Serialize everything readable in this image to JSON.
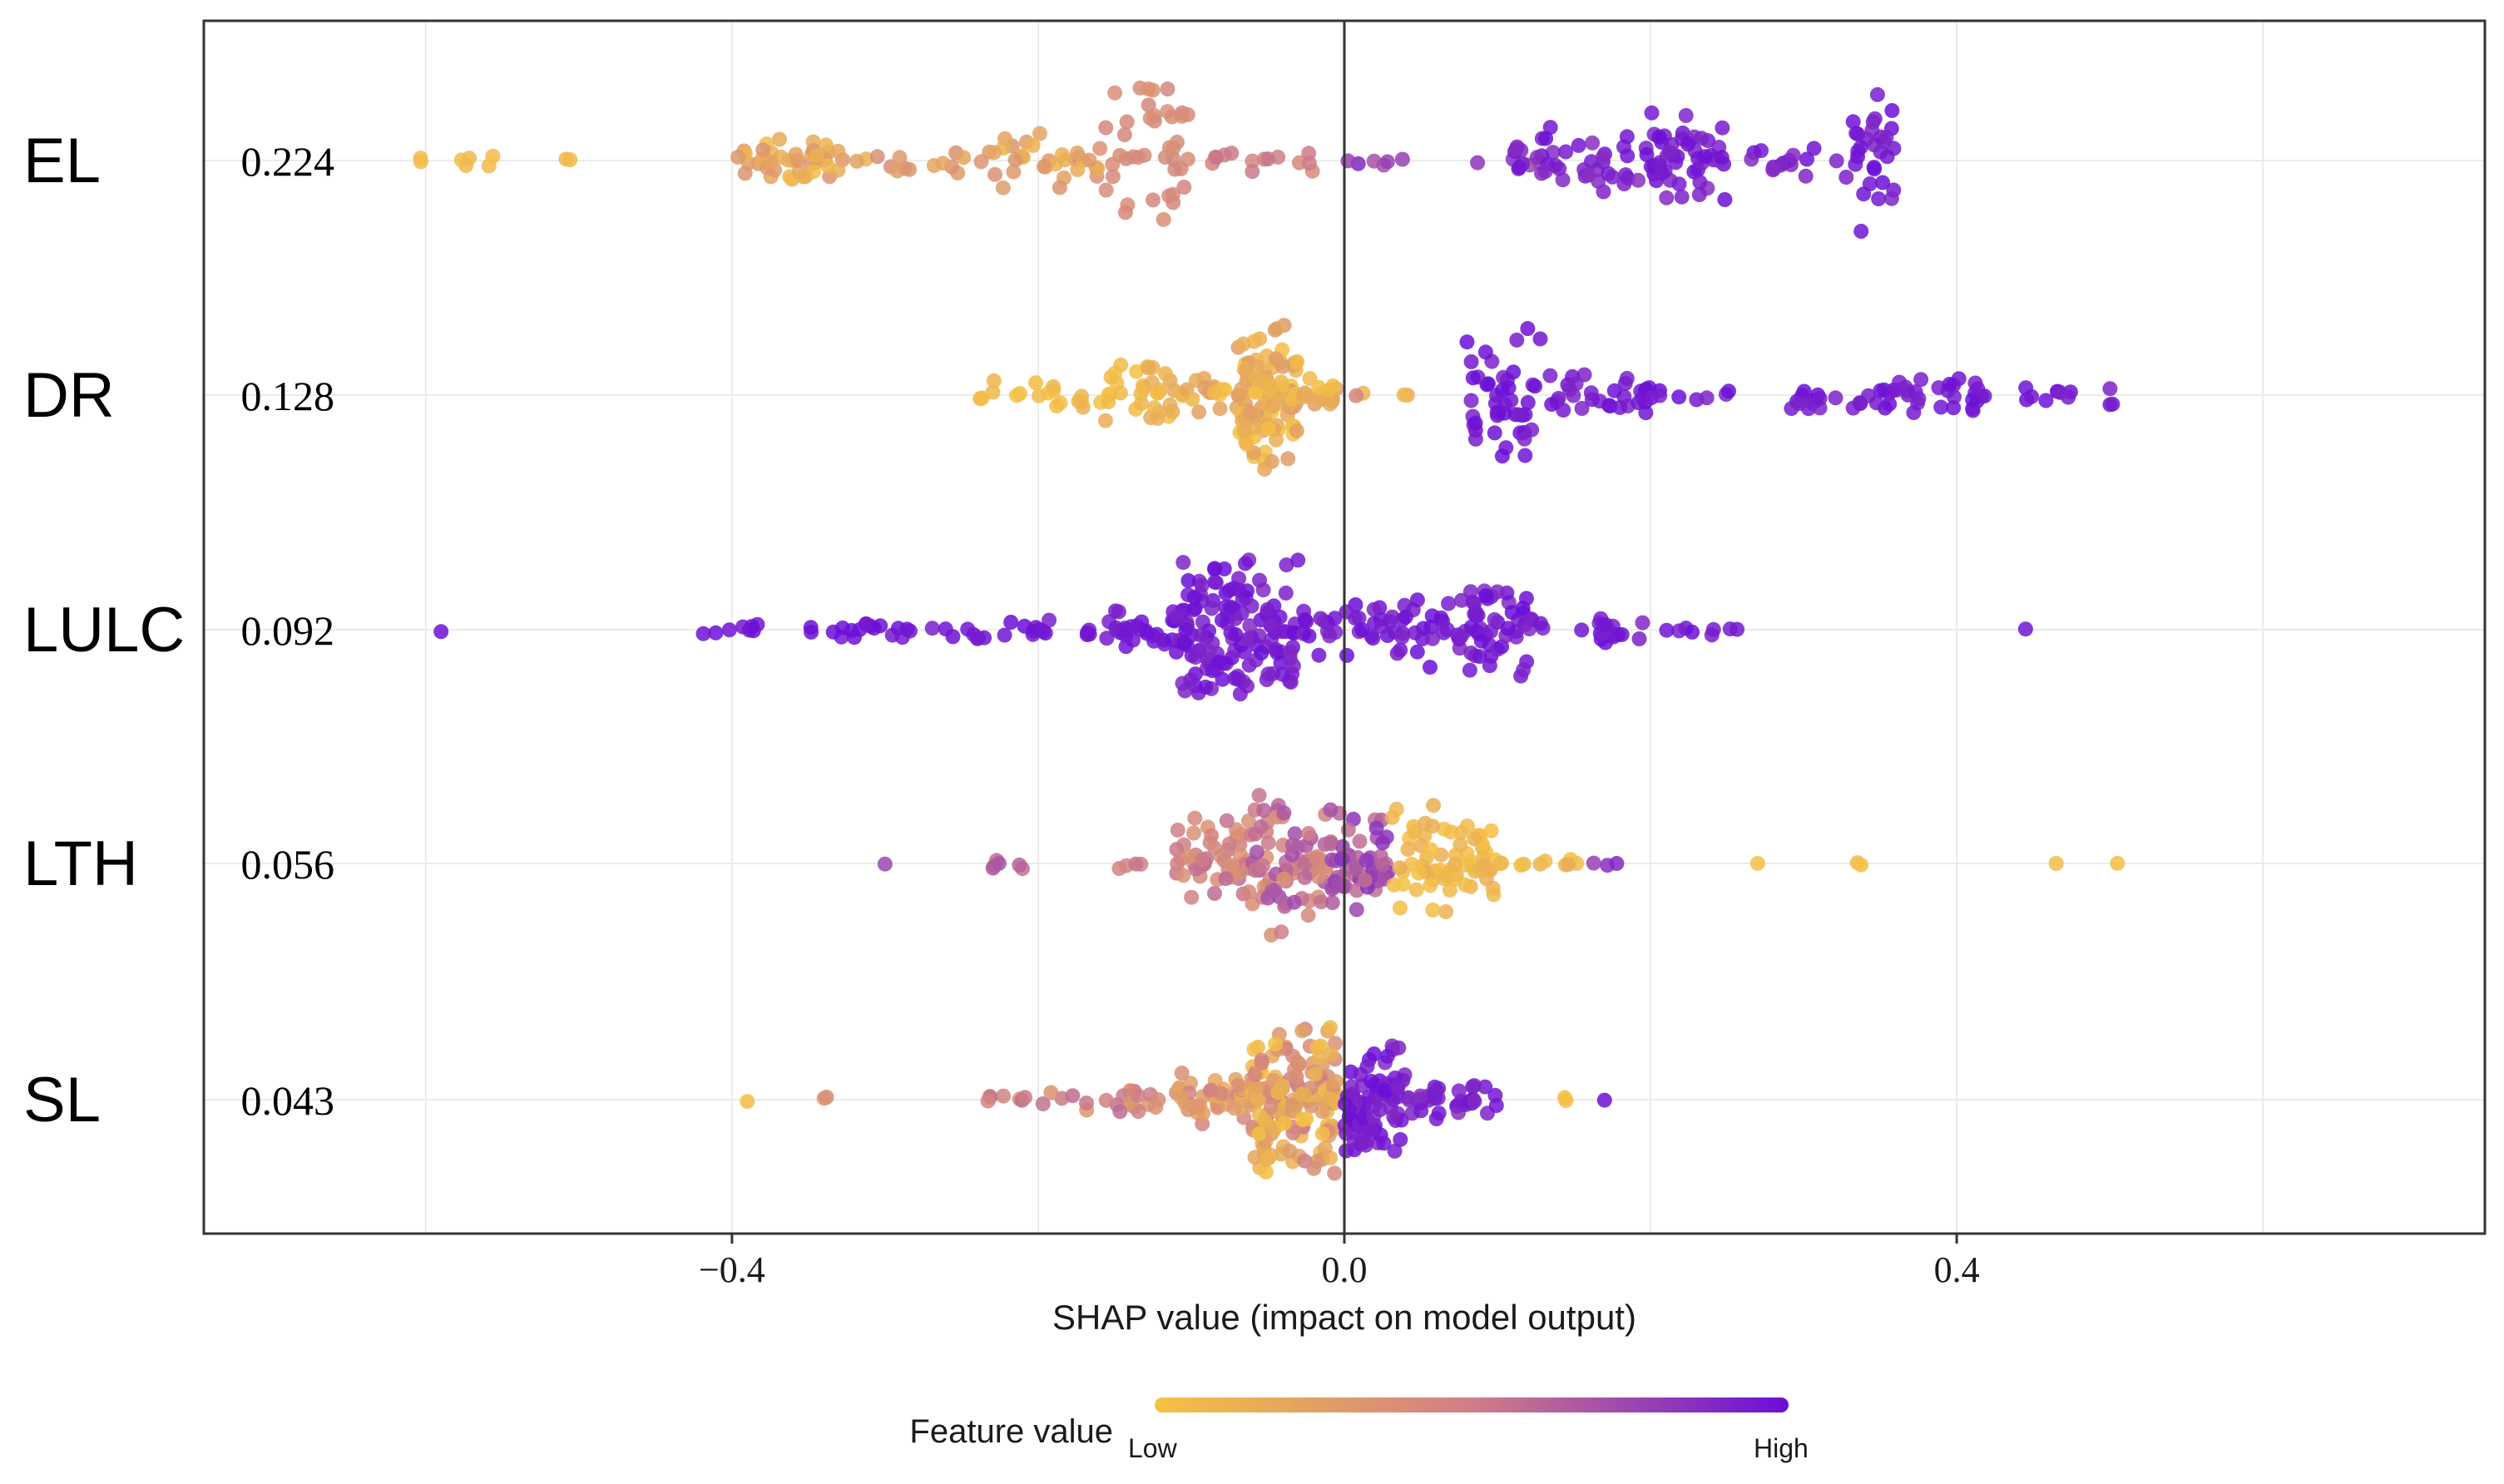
{
  "chart_data": {
    "type": "scatter",
    "subtype": "shap-beeswarm",
    "xlabel": "SHAP value (impact on model output)",
    "xlim": [
      -0.745,
      0.745
    ],
    "xticks": [
      -0.4,
      0.0,
      0.4
    ],
    "xtick_labels": [
      "−0.4",
      "0.0",
      "0.4"
    ],
    "grid": true,
    "colors": {
      "low": "#f5c242",
      "mid": "#cf7f86",
      "high": "#6a0ed8"
    },
    "legend": {
      "title": "Feature value",
      "low_label": "Low",
      "high_label": "High",
      "placement": "bottom-center"
    },
    "features": [
      {
        "name": "EL",
        "importance": "0.224",
        "clusters": [
          {
            "range": [
              -0.61,
              -0.6
            ],
            "n": 2,
            "spread": 0.1,
            "c": [
              0.02,
              0.05
            ]
          },
          {
            "range": [
              -0.58,
              -0.55
            ],
            "n": 5,
            "spread": 0.12,
            "c": [
              0.03,
              0.08
            ]
          },
          {
            "range": [
              -0.51,
              -0.5
            ],
            "n": 2,
            "spread": 0.08,
            "c": [
              0.05,
              0.08
            ]
          },
          {
            "range": [
              -0.4,
              -0.31
            ],
            "n": 45,
            "spread": 0.35,
            "c": [
              0.05,
              0.35
            ]
          },
          {
            "range": [
              -0.31,
              -0.23
            ],
            "n": 14,
            "spread": 0.18,
            "c": [
              0.2,
              0.4
            ]
          },
          {
            "range": [
              -0.23,
              -0.16
            ],
            "n": 30,
            "spread": 0.4,
            "c": [
              0.1,
              0.4
            ]
          },
          {
            "range": [
              -0.16,
              -0.1
            ],
            "n": 42,
            "spread": 1.0,
            "c": [
              0.35,
              0.45
            ]
          },
          {
            "range": [
              -0.1,
              -0.02
            ],
            "n": 14,
            "spread": 0.15,
            "c": [
              0.4,
              0.55
            ]
          },
          {
            "range": [
              -0.01,
              0.13
            ],
            "n": 10,
            "spread": 0.12,
            "c": [
              0.7,
              0.9
            ]
          },
          {
            "range": [
              0.11,
              0.22
            ],
            "n": 55,
            "spread": 0.45,
            "c": [
              0.85,
              1.0
            ]
          },
          {
            "range": [
              0.2,
              0.25
            ],
            "n": 40,
            "spread": 0.7,
            "c": [
              0.85,
              1.0
            ]
          },
          {
            "range": [
              0.26,
              0.33
            ],
            "n": 16,
            "spread": 0.25,
            "c": [
              0.85,
              1.0
            ]
          },
          {
            "range": [
              0.33,
              0.36
            ],
            "n": 30,
            "spread": 1.0,
            "c": [
              0.9,
              1.0
            ]
          }
        ]
      },
      {
        "name": "DR",
        "importance": "0.128",
        "clusters": [
          {
            "range": [
              -0.24,
              -0.18
            ],
            "n": 14,
            "spread": 0.2,
            "c": [
              0.0,
              0.1
            ]
          },
          {
            "range": [
              -0.18,
              -0.11
            ],
            "n": 38,
            "spread": 0.45,
            "c": [
              0.0,
              0.2
            ]
          },
          {
            "range": [
              -0.11,
              -0.07
            ],
            "n": 18,
            "spread": 0.3,
            "c": [
              0.0,
              0.3
            ]
          },
          {
            "range": [
              -0.07,
              -0.03
            ],
            "n": 110,
            "spread": 1.0,
            "c": [
              0.0,
              0.3
            ]
          },
          {
            "range": [
              -0.03,
              -0.005
            ],
            "n": 18,
            "spread": 0.35,
            "c": [
              0.0,
              0.3
            ]
          },
          {
            "range": [
              0.0,
              0.05
            ],
            "n": 4,
            "spread": 0.05,
            "c": [
              0.05,
              0.9
            ]
          },
          {
            "range": [
              0.08,
              0.13
            ],
            "n": 45,
            "spread": 0.9,
            "c": [
              0.9,
              1.0
            ]
          },
          {
            "range": [
              0.13,
              0.2
            ],
            "n": 32,
            "spread": 0.3,
            "c": [
              0.9,
              1.0
            ]
          },
          {
            "range": [
              0.2,
              0.27
            ],
            "n": 8,
            "spread": 0.08,
            "c": [
              0.9,
              1.0
            ]
          },
          {
            "range": [
              0.29,
              0.37
            ],
            "n": 28,
            "spread": 0.25,
            "c": [
              0.9,
              1.0
            ]
          },
          {
            "range": [
              0.37,
              0.42
            ],
            "n": 22,
            "spread": 0.3,
            "c": [
              0.9,
              1.0
            ]
          },
          {
            "range": [
              0.44,
              0.51
            ],
            "n": 12,
            "spread": 0.15,
            "c": [
              0.9,
              1.0
            ]
          }
        ]
      },
      {
        "name": "LULC",
        "importance": "0.092",
        "clusters": [
          {
            "range": [
              -0.59,
              -0.59
            ],
            "n": 1,
            "spread": 0.05,
            "c": [
              0.95,
              1.0
            ]
          },
          {
            "range": [
              -0.42,
              -0.38
            ],
            "n": 8,
            "spread": 0.12,
            "c": [
              0.95,
              1.0
            ]
          },
          {
            "range": [
              -0.35,
              -0.28
            ],
            "n": 18,
            "spread": 0.12,
            "c": [
              0.95,
              1.0
            ]
          },
          {
            "range": [
              -0.27,
              -0.15
            ],
            "n": 24,
            "spread": 0.15,
            "c": [
              0.92,
              1.0
            ]
          },
          {
            "range": [
              -0.15,
              -0.11
            ],
            "n": 25,
            "spread": 0.3,
            "c": [
              0.92,
              1.0
            ]
          },
          {
            "range": [
              -0.11,
              -0.03
            ],
            "n": 140,
            "spread": 1.0,
            "c": [
              0.88,
              1.0
            ]
          },
          {
            "range": [
              -0.03,
              0.03
            ],
            "n": 30,
            "spread": 0.35,
            "c": [
              0.88,
              1.0
            ]
          },
          {
            "range": [
              0.03,
              0.08
            ],
            "n": 30,
            "spread": 0.55,
            "c": [
              0.88,
              1.0
            ]
          },
          {
            "range": [
              0.08,
              0.12
            ],
            "n": 45,
            "spread": 0.85,
            "c": [
              0.88,
              1.0
            ]
          },
          {
            "range": [
              0.12,
              0.2
            ],
            "n": 22,
            "spread": 0.2,
            "c": [
              0.88,
              1.0
            ]
          },
          {
            "range": [
              0.21,
              0.26
            ],
            "n": 8,
            "spread": 0.08,
            "c": [
              0.88,
              1.0
            ]
          },
          {
            "range": [
              0.445,
              0.445
            ],
            "n": 1,
            "spread": 0.05,
            "c": [
              0.95,
              1.0
            ]
          }
        ]
      },
      {
        "name": "LTH",
        "importance": "0.056",
        "clusters": [
          {
            "range": [
              -0.3,
              -0.3
            ],
            "n": 1,
            "spread": 0.05,
            "c": [
              0.75,
              0.8
            ]
          },
          {
            "range": [
              -0.235,
              -0.2
            ],
            "n": 6,
            "spread": 0.1,
            "c": [
              0.5,
              0.7
            ]
          },
          {
            "range": [
              -0.15,
              -0.13
            ],
            "n": 4,
            "spread": 0.08,
            "c": [
              0.45,
              0.55
            ]
          },
          {
            "range": [
              -0.11,
              -0.06
            ],
            "n": 55,
            "spread": 0.65,
            "c": [
              0.35,
              0.6
            ]
          },
          {
            "range": [
              -0.06,
              -0.01
            ],
            "n": 70,
            "spread": 1.0,
            "c": [
              0.35,
              0.75
            ]
          },
          {
            "range": [
              -0.01,
              0.03
            ],
            "n": 55,
            "spread": 0.7,
            "c": [
              0.55,
              0.85
            ]
          },
          {
            "range": [
              0.03,
              0.1
            ],
            "n": 70,
            "spread": 0.75,
            "c": [
              0.0,
              0.15
            ]
          },
          {
            "range": [
              0.1,
              0.16
            ],
            "n": 10,
            "spread": 0.1,
            "c": [
              0.0,
              0.2
            ]
          },
          {
            "range": [
              0.16,
              0.18
            ],
            "n": 3,
            "spread": 0.05,
            "c": [
              0.75,
              0.9
            ]
          },
          {
            "range": [
              0.27,
              0.27
            ],
            "n": 1,
            "spread": 0.05,
            "c": [
              0.0,
              0.05
            ]
          },
          {
            "range": [
              0.335,
              0.34
            ],
            "n": 2,
            "spread": 0.05,
            "c": [
              0.0,
              0.05
            ]
          },
          {
            "range": [
              0.465,
              0.465
            ],
            "n": 1,
            "spread": 0.05,
            "c": [
              0.0,
              0.05
            ]
          },
          {
            "range": [
              0.505,
              0.505
            ],
            "n": 1,
            "spread": 0.05,
            "c": [
              0.0,
              0.05
            ]
          }
        ]
      },
      {
        "name": "SL",
        "importance": "0.043",
        "clusters": [
          {
            "range": [
              -0.39,
              -0.39
            ],
            "n": 1,
            "spread": 0.05,
            "c": [
              0.0,
              0.05
            ]
          },
          {
            "range": [
              -0.34,
              -0.33
            ],
            "n": 2,
            "spread": 0.06,
            "c": [
              0.1,
              0.4
            ]
          },
          {
            "range": [
              -0.245,
              -0.18
            ],
            "n": 10,
            "spread": 0.1,
            "c": [
              0.35,
              0.6
            ]
          },
          {
            "range": [
              -0.18,
              -0.11
            ],
            "n": 20,
            "spread": 0.2,
            "c": [
              0.3,
              0.6
            ]
          },
          {
            "range": [
              -0.11,
              -0.06
            ],
            "n": 40,
            "spread": 0.35,
            "c": [
              0.15,
              0.5
            ]
          },
          {
            "range": [
              -0.06,
              -0.005
            ],
            "n": 160,
            "spread": 1.0,
            "c": [
              0.0,
              0.5
            ]
          },
          {
            "range": [
              0.0,
              0.04
            ],
            "n": 80,
            "spread": 0.75,
            "c": [
              0.88,
              1.0
            ]
          },
          {
            "range": [
              0.04,
              0.1
            ],
            "n": 35,
            "spread": 0.25,
            "c": [
              0.85,
              1.0
            ]
          },
          {
            "range": [
              0.14,
              0.15
            ],
            "n": 2,
            "spread": 0.05,
            "c": [
              0.0,
              0.05
            ]
          },
          {
            "range": [
              0.17,
              0.17
            ],
            "n": 1,
            "spread": 0.05,
            "c": [
              0.95,
              1.0
            ]
          }
        ]
      }
    ]
  }
}
